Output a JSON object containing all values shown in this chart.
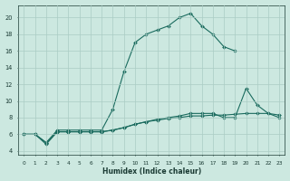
{
  "xlabel": "Humidex (Indice chaleur)",
  "bg_color": "#cce8e0",
  "grid_color": "#aaccC4",
  "line_color": "#1a6b5e",
  "xlim": [
    -0.5,
    23.5
  ],
  "ylim": [
    3.5,
    21.5
  ],
  "yticks": [
    4,
    6,
    8,
    10,
    12,
    14,
    16,
    18,
    20
  ],
  "xticks": [
    0,
    1,
    2,
    3,
    4,
    5,
    6,
    7,
    8,
    9,
    10,
    11,
    12,
    13,
    14,
    15,
    16,
    17,
    18,
    19,
    20,
    21,
    22,
    23
  ],
  "series": [
    {
      "x": [
        0,
        1,
        2,
        3,
        4,
        5,
        6,
        7,
        8,
        9,
        10,
        11,
        12,
        13,
        14,
        15,
        16,
        17,
        18,
        19
      ],
      "y": [
        6,
        6,
        5,
        6.5,
        6.5,
        6.5,
        6.5,
        6.5,
        9,
        13.5,
        17,
        18,
        18.5,
        19,
        20,
        20.5,
        19,
        18,
        16.5,
        16
      ]
    },
    {
      "x": [
        0,
        1,
        2,
        3,
        4,
        5,
        6,
        7,
        8,
        9,
        10,
        11,
        12,
        13,
        14,
        15,
        16,
        17,
        18,
        19,
        20,
        21,
        22,
        23
      ],
      "y": [
        6,
        6,
        4.8,
        6.3,
        6.3,
        6.3,
        6.3,
        6.3,
        6.5,
        6.8,
        7.2,
        7.5,
        7.7,
        7.9,
        8.0,
        8.2,
        8.2,
        8.3,
        8.3,
        8.4,
        8.5,
        8.5,
        8.5,
        8.3
      ]
    },
    {
      "x": [
        0,
        1,
        2,
        3,
        4,
        5,
        6,
        7,
        8,
        9,
        10,
        11,
        12,
        13,
        14,
        15,
        16,
        17,
        18,
        19,
        20,
        21,
        22,
        23
      ],
      "y": [
        6,
        6,
        5,
        6.3,
        6.3,
        6.3,
        6.3,
        6.3,
        6.5,
        6.8,
        7.2,
        7.5,
        7.8,
        8.0,
        8.2,
        8.5,
        8.5,
        8.5,
        8.0,
        8.0,
        11.5,
        9.5,
        8.5,
        8.0
      ]
    }
  ]
}
